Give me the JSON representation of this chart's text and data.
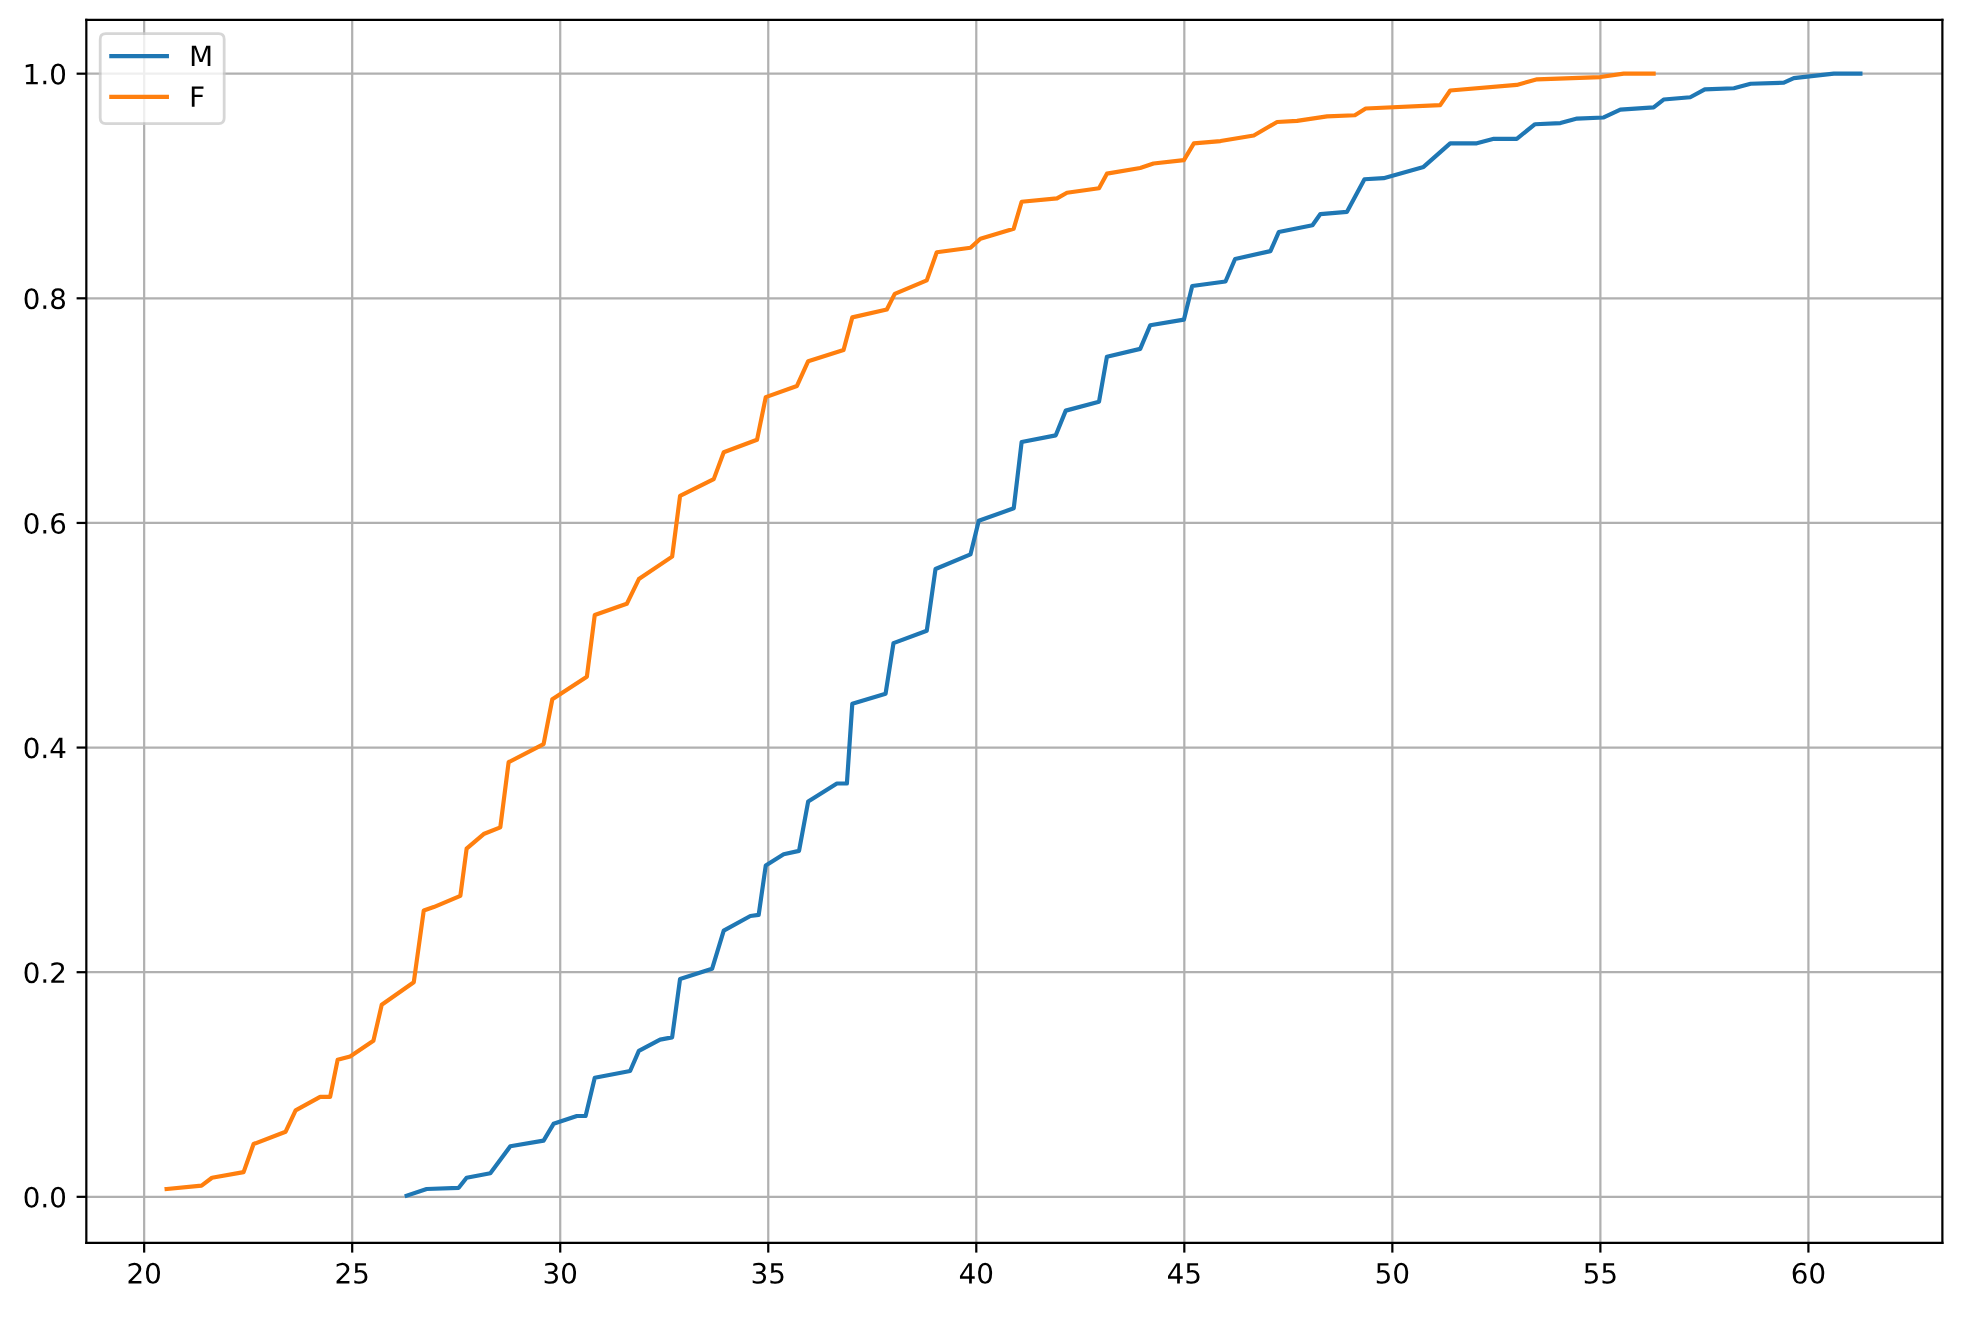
{
  "chart_data": {
    "type": "line",
    "xlim": [
      18.61,
      63.22
    ],
    "ylim": [
      -0.041,
      1.048
    ],
    "xticks": [
      20,
      25,
      30,
      35,
      40,
      45,
      50,
      55,
      60
    ],
    "yticks": [
      {
        "value": 0,
        "label": "0.0"
      },
      {
        "value": 0.2,
        "label": "0.2"
      },
      {
        "value": 0.4,
        "label": "0.4"
      },
      {
        "value": 0.6,
        "label": "0.6"
      },
      {
        "value": 0.8,
        "label": "0.8"
      },
      {
        "value": 1.0,
        "label": "1.0"
      }
    ],
    "grid": true,
    "legend": "top left",
    "marker": "none",
    "line_style": "solid",
    "series": [
      {
        "name": "M",
        "color": "#1f77b4",
        "x": [
          26.31,
          26.79,
          27.56,
          27.75,
          28.32,
          28.8,
          29.6,
          29.84,
          30.4,
          30.61,
          30.83,
          31.68,
          31.89,
          32.4,
          32.69,
          32.88,
          33.65,
          33.93,
          34.57,
          34.77,
          34.94,
          35.37,
          35.74,
          35.96,
          36.65,
          36.89,
          37.02,
          37.82,
          38.01,
          38.81,
          39.02,
          39.86,
          40.06,
          40.9,
          41.09,
          41.91,
          42.15,
          42.95,
          43.14,
          43.94,
          44.18,
          44.99,
          45.19,
          45.99,
          46.22,
          47.07,
          47.27,
          48.08,
          48.27,
          48.91,
          49.33,
          49.79,
          50.75,
          51.39,
          52.03,
          52.44,
          52.99,
          53.43,
          54.04,
          54.44,
          55.08,
          55.48,
          56.28,
          56.52,
          57.16,
          57.51,
          58.21,
          58.61,
          59.41,
          59.65,
          60.61,
          61.25
        ],
        "values": [
          0.001,
          0.007,
          0.008,
          0.017,
          0.021,
          0.045,
          0.05,
          0.065,
          0.072,
          0.072,
          0.106,
          0.112,
          0.13,
          0.14,
          0.142,
          0.194,
          0.203,
          0.237,
          0.25,
          0.251,
          0.295,
          0.305,
          0.308,
          0.352,
          0.368,
          0.368,
          0.439,
          0.448,
          0.493,
          0.504,
          0.559,
          0.572,
          0.602,
          0.613,
          0.672,
          0.678,
          0.7,
          0.708,
          0.748,
          0.755,
          0.776,
          0.781,
          0.811,
          0.815,
          0.835,
          0.842,
          0.859,
          0.865,
          0.875,
          0.877,
          0.906,
          0.907,
          0.917,
          0.938,
          0.938,
          0.942,
          0.942,
          0.955,
          0.956,
          0.96,
          0.961,
          0.968,
          0.97,
          0.977,
          0.979,
          0.986,
          0.987,
          0.991,
          0.992,
          0.996,
          1.0,
          1.0
        ]
      },
      {
        "name": "F",
        "color": "#ff7f0e",
        "x": [
          20.54,
          21.38,
          21.63,
          22.39,
          22.63,
          23.4,
          23.64,
          24.23,
          24.47,
          24.65,
          24.95,
          25.51,
          25.71,
          26.48,
          26.72,
          26.96,
          27.6,
          27.75,
          28.16,
          28.56,
          28.76,
          29.6,
          29.81,
          30.64,
          30.83,
          31.6,
          31.89,
          32.69,
          32.88,
          33.69,
          33.93,
          34.73,
          34.94,
          35.69,
          35.96,
          36.81,
          37.02,
          37.85,
          38.04,
          38.81,
          39.05,
          39.86,
          40.1,
          40.9,
          41.09,
          41.94,
          42.18,
          42.95,
          43.14,
          43.94,
          44.26,
          44.99,
          45.23,
          45.87,
          46.67,
          47.23,
          47.71,
          48.43,
          49.1,
          49.36,
          51.15,
          51.39,
          52.99,
          53.48,
          55.0,
          55.56,
          56.28
        ],
        "values": [
          0.007,
          0.01,
          0.017,
          0.022,
          0.047,
          0.058,
          0.077,
          0.089,
          0.089,
          0.122,
          0.125,
          0.139,
          0.171,
          0.191,
          0.255,
          0.258,
          0.268,
          0.31,
          0.323,
          0.329,
          0.387,
          0.403,
          0.443,
          0.463,
          0.518,
          0.528,
          0.55,
          0.57,
          0.624,
          0.639,
          0.663,
          0.674,
          0.712,
          0.722,
          0.744,
          0.754,
          0.783,
          0.79,
          0.804,
          0.816,
          0.841,
          0.845,
          0.853,
          0.862,
          0.886,
          0.889,
          0.894,
          0.898,
          0.911,
          0.916,
          0.92,
          0.923,
          0.938,
          0.94,
          0.945,
          0.957,
          0.958,
          0.962,
          0.963,
          0.969,
          0.972,
          0.985,
          0.99,
          0.995,
          0.997,
          1.0,
          1.0
        ]
      }
    ]
  }
}
